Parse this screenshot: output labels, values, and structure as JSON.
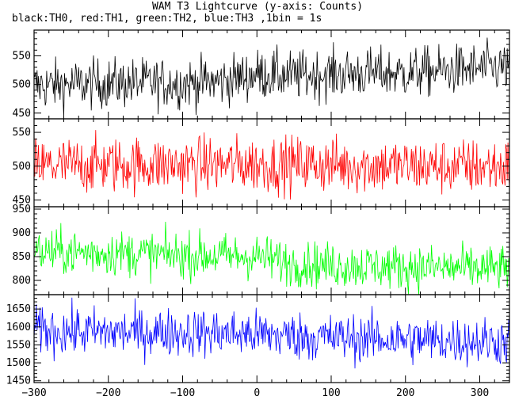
{
  "chart_data": {
    "type": "line",
    "title": "WAM T3 Lightcurve (y-axis: Counts)",
    "subtitle": "black:TH0, red:TH1, green:TH2, blue:TH3 ,1bin = 1s",
    "x_range": [
      -300,
      340
    ],
    "x_ticks": [
      -300,
      -200,
      -100,
      0,
      100,
      200,
      300
    ],
    "panels": [
      {
        "name": "TH0",
        "color": "#000000",
        "ylim": [
          440,
          595
        ],
        "yticks": [
          450,
          500,
          550
        ],
        "x": [
          -300,
          -250,
          -200,
          -150,
          -100,
          -50,
          0,
          50,
          100,
          150,
          200,
          250,
          300,
          340
        ],
        "mean": [
          498,
          500,
          502,
          503,
          502,
          505,
          518,
          515,
          518,
          520,
          520,
          524,
          528,
          530
        ],
        "noise": 22
      },
      {
        "name": "TH1",
        "color": "#ff0000",
        "ylim": [
          440,
          570
        ],
        "yticks": [
          450,
          500,
          550
        ],
        "x": [
          -300,
          -200,
          -100,
          0,
          100,
          200,
          300,
          340
        ],
        "mean": [
          500,
          502,
          502,
          503,
          502,
          500,
          499,
          500
        ],
        "noise": 21
      },
      {
        "name": "TH2",
        "color": "#00ff00",
        "ylim": [
          770,
          955
        ],
        "yticks": [
          800,
          850,
          900,
          950
        ],
        "x": [
          -300,
          -200,
          -100,
          0,
          50,
          100,
          200,
          300,
          340
        ],
        "mean": [
          860,
          858,
          853,
          850,
          835,
          832,
          828,
          825,
          826
        ],
        "noise": 24
      },
      {
        "name": "TH3",
        "color": "#0000ff",
        "ylim": [
          1445,
          1690
        ],
        "yticks": [
          1450,
          1500,
          1550,
          1600,
          1650
        ],
        "x": [
          -300,
          -200,
          -100,
          0,
          100,
          200,
          300,
          340
        ],
        "mean": [
          1590,
          1585,
          1585,
          1580,
          1570,
          1565,
          1560,
          1560
        ],
        "noise": 34
      }
    ]
  }
}
